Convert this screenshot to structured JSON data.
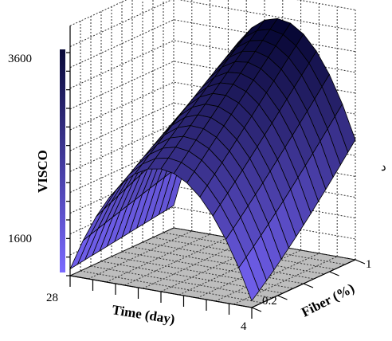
{
  "chart_data": {
    "type": "surface3d",
    "title": "",
    "zlabel": "VISCO",
    "xlabel": "Time (day)",
    "ylabel": "Fiber (%)",
    "z_ticks": [
      "3600",
      "1600"
    ],
    "x_ticks": [
      "28",
      "4"
    ],
    "y_ticks": [
      "1",
      "0.2"
    ],
    "zlim": [
      1600,
      3600
    ],
    "colorbar_colors": [
      "#0a0a3a",
      "#7a6aff"
    ],
    "surface_color_low": "#7b68ff",
    "surface_color_high": "#050530",
    "floor_color": "#bdbdbd",
    "stray_char": "د"
  }
}
